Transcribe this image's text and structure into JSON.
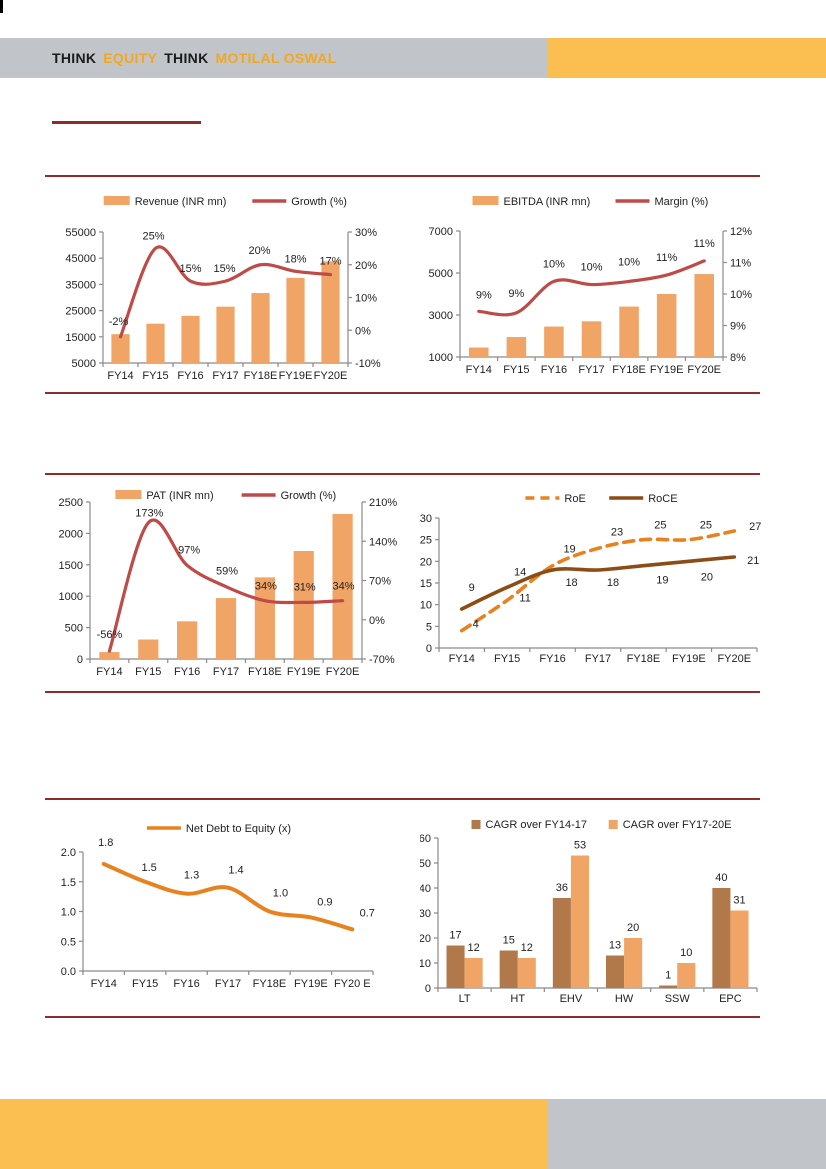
{
  "header": {
    "segments": [
      {
        "text": "THINK",
        "accent": false
      },
      {
        "text": "EQUITY",
        "accent": true
      },
      {
        "text": "THINK",
        "accent": false
      },
      {
        "text": "MOTILAL OSWAL",
        "accent": true
      }
    ]
  },
  "colors": {
    "header_gray": "#C1C5C9",
    "header_orange": "#FBBE50",
    "header_text_dark": "#1B1B1B",
    "header_text_accent": "#F4A71D",
    "maroon_rule": "#8E2C2C",
    "bar_orange": "#F0A466",
    "bar_brown": "#B1784A",
    "line_red": "#BE4B48",
    "line_orange": "#E8821E",
    "line_brown": "#8B4D15",
    "axis": "#8A8A8A",
    "chart_text": "#1F1F1F",
    "page_bg": "#FFFFFF",
    "edge_mark": "#000000"
  },
  "chart_data": [
    {
      "id": "revenue_growth",
      "type": "combo",
      "categories": [
        "FY14",
        "FY15",
        "FY16",
        "FY17",
        "FY18E",
        "FY19E",
        "FY20E"
      ],
      "bar_series": {
        "name": "Revenue (INR mn)",
        "color": "bar_orange",
        "values": [
          16000,
          20000,
          23000,
          26500,
          31700,
          37500,
          43800
        ]
      },
      "bar_axis": {
        "min": 5000,
        "max": 55000,
        "tick_values": [
          5000,
          15000,
          25000,
          35000,
          45000,
          55000
        ],
        "tick_labels": [
          "5000",
          "15000",
          "25000",
          "35000",
          "45000",
          "55000"
        ]
      },
      "line_series": {
        "name": "Growth (%)",
        "color": "line_red",
        "values": [
          -2,
          25,
          15,
          15,
          20,
          18,
          17
        ],
        "labels": [
          "-2%",
          "25%",
          "15%",
          "15%",
          "20%",
          "18%",
          "17%"
        ]
      },
      "line_axis": {
        "min": -10,
        "max": 30,
        "tick_values": [
          -10,
          0,
          10,
          20,
          30
        ],
        "tick_labels": [
          "-10%",
          "0%",
          "10%",
          "20%",
          "30%"
        ]
      }
    },
    {
      "id": "ebitda_margin",
      "type": "combo",
      "categories": [
        "FY14",
        "FY15",
        "FY16",
        "FY17",
        "FY18E",
        "FY19E",
        "FY20E"
      ],
      "bar_series": {
        "name": "EBITDA (INR mn)",
        "color": "bar_orange",
        "values": [
          1450,
          1950,
          2450,
          2700,
          3400,
          4000,
          4950
        ]
      },
      "bar_axis": {
        "min": 1000,
        "max": 7000,
        "tick_values": [
          1000,
          3000,
          5000,
          7000
        ],
        "tick_labels": [
          "1000",
          "3000",
          "5000",
          "7000"
        ]
      },
      "line_series": {
        "name": "Margin (%)",
        "color": "line_red",
        "values": [
          9,
          9,
          10,
          10,
          10,
          11,
          11
        ],
        "plot_values": [
          9.45,
          9.4,
          10.4,
          10.3,
          10.4,
          10.6,
          11.05
        ],
        "labels": [
          "9%",
          "9%",
          "10%",
          "10%",
          "10%",
          "11%",
          "11%"
        ]
      },
      "line_axis": {
        "min": 8,
        "max": 12,
        "tick_values": [
          8,
          9,
          10,
          11,
          12
        ],
        "tick_labels": [
          "8%",
          "9%",
          "10%",
          "11%",
          "12%"
        ]
      }
    },
    {
      "id": "pat_growth",
      "type": "combo",
      "categories": [
        "FY14",
        "FY15",
        "FY16",
        "FY17",
        "FY18E",
        "FY19E",
        "FY20E"
      ],
      "bar_series": {
        "name": "PAT (INR mn)",
        "color": "bar_orange",
        "values": [
          110,
          310,
          600,
          970,
          1300,
          1720,
          2310
        ]
      },
      "bar_axis": {
        "min": 0,
        "max": 2500,
        "tick_values": [
          0,
          500,
          1000,
          1500,
          2000,
          2500
        ],
        "tick_labels": [
          "0",
          "500",
          "1000",
          "1500",
          "2000",
          "2500"
        ]
      },
      "line_series": {
        "name": "Growth (%)",
        "color": "line_red",
        "values": [
          -56,
          173,
          97,
          59,
          34,
          31,
          34
        ],
        "labels": [
          "-56%",
          "173%",
          "97%",
          "59%",
          "34%",
          "31%",
          "34%"
        ]
      },
      "line_axis": {
        "min": -70,
        "max": 210,
        "tick_values": [
          -70,
          0,
          70,
          140,
          210
        ],
        "tick_labels": [
          "-70%",
          "0%",
          "70%",
          "140%",
          "210%"
        ]
      }
    },
    {
      "id": "roe_roce",
      "type": "line",
      "categories": [
        "FY14",
        "FY15",
        "FY16",
        "FY17",
        "FY18E",
        "FY19E",
        "FY20E"
      ],
      "axis": {
        "min": 0,
        "max": 30,
        "tick_values": [
          0,
          5,
          10,
          15,
          20,
          25,
          30
        ],
        "tick_labels": [
          "0",
          "5",
          "10",
          "15",
          "20",
          "25",
          "30"
        ]
      },
      "series": [
        {
          "name": "RoE",
          "color": "line_orange",
          "dashed": true,
          "values": [
            4,
            11,
            19,
            23,
            25,
            25,
            27
          ],
          "labels": [
            "4",
            "11",
            "19",
            "23",
            "25",
            "25",
            "27"
          ]
        },
        {
          "name": "RoCE",
          "color": "line_brown",
          "dashed": false,
          "values": [
            9,
            14,
            18,
            18,
            19,
            20,
            21
          ],
          "labels": [
            "9",
            "14",
            "18",
            "18",
            "19",
            "20",
            "21"
          ]
        }
      ]
    },
    {
      "id": "net_debt_to_equity",
      "type": "line",
      "categories": [
        "FY14",
        "FY15",
        "FY16",
        "FY17",
        "FY18E",
        "FY19E",
        "FY20 E"
      ],
      "axis": {
        "min": 0,
        "max": 2,
        "tick_values": [
          0,
          0.5,
          1,
          1.5,
          2
        ],
        "tick_labels": [
          "0.0",
          "0.5",
          "1.0",
          "1.5",
          "2.0"
        ]
      },
      "series": [
        {
          "name": "Net Debt to Equity (x)",
          "color": "line_orange",
          "dashed": false,
          "values": [
            1.8,
            1.5,
            1.3,
            1.4,
            1.0,
            0.9,
            0.7
          ],
          "labels": [
            "1.8",
            "1.5",
            "1.3",
            "1.4",
            "1.0",
            "0.9",
            "0.7"
          ]
        }
      ]
    },
    {
      "id": "segment_cagr",
      "type": "groupbar",
      "categories": [
        "LT",
        "HT",
        "EHV",
        "HW",
        "SSW",
        "EPC"
      ],
      "axis": {
        "min": 0,
        "max": 60,
        "tick_values": [
          0,
          10,
          20,
          30,
          40,
          50,
          60
        ],
        "tick_labels": [
          "0",
          "10",
          "20",
          "30",
          "40",
          "50",
          "60"
        ]
      },
      "series": [
        {
          "name": "CAGR over FY14-17",
          "color": "bar_brown",
          "values": [
            17,
            15,
            36,
            13,
            1,
            40
          ],
          "labels": [
            "17",
            "15",
            "36",
            "13",
            "1",
            "40"
          ]
        },
        {
          "name": "CAGR over FY17-20E",
          "color": "bar_orange",
          "values": [
            12,
            12,
            53,
            20,
            10,
            31
          ],
          "labels": [
            "12",
            "12",
            "53",
            "20",
            "10",
            "31"
          ]
        }
      ]
    }
  ]
}
